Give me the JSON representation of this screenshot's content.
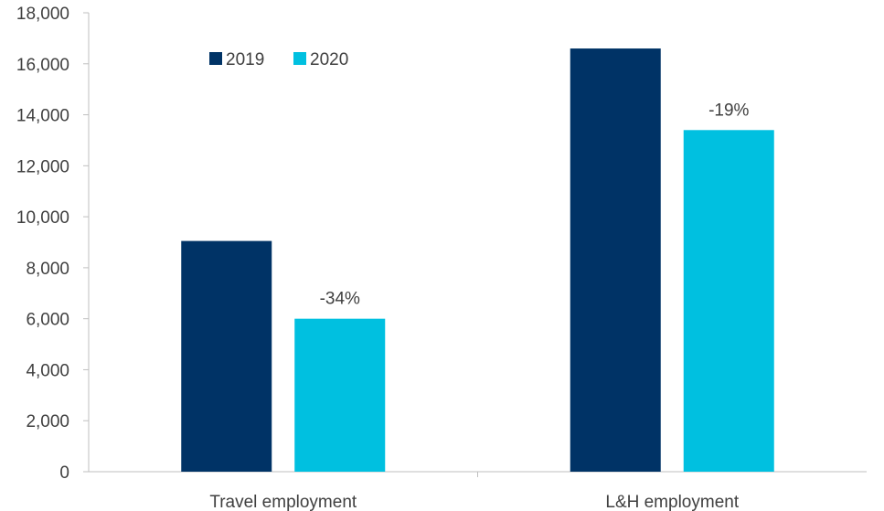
{
  "chart_data": {
    "type": "bar",
    "categories": [
      "Travel employment",
      "L&H employment"
    ],
    "series": [
      {
        "name": "2019",
        "values": [
          9050,
          16600
        ],
        "color": "#003366"
      },
      {
        "name": "2020",
        "values": [
          6000,
          13400
        ],
        "color": "#00c0e0"
      }
    ],
    "data_labels": {
      "2020": [
        "-34%",
        "-19%"
      ]
    },
    "ylim": [
      0,
      18000
    ],
    "yticks": [
      0,
      2000,
      4000,
      6000,
      8000,
      10000,
      12000,
      14000,
      16000,
      18000
    ],
    "ytick_labels": [
      "0",
      "2,000",
      "4,000",
      "6,000",
      "8,000",
      "10,000",
      "12,000",
      "14,000",
      "16,000",
      "18,000"
    ],
    "grid": false,
    "legend_position": "top-left",
    "title": "",
    "xlabel": "",
    "ylabel": ""
  },
  "colors": {
    "axis": "#bfbfbf",
    "text": "#404040"
  }
}
